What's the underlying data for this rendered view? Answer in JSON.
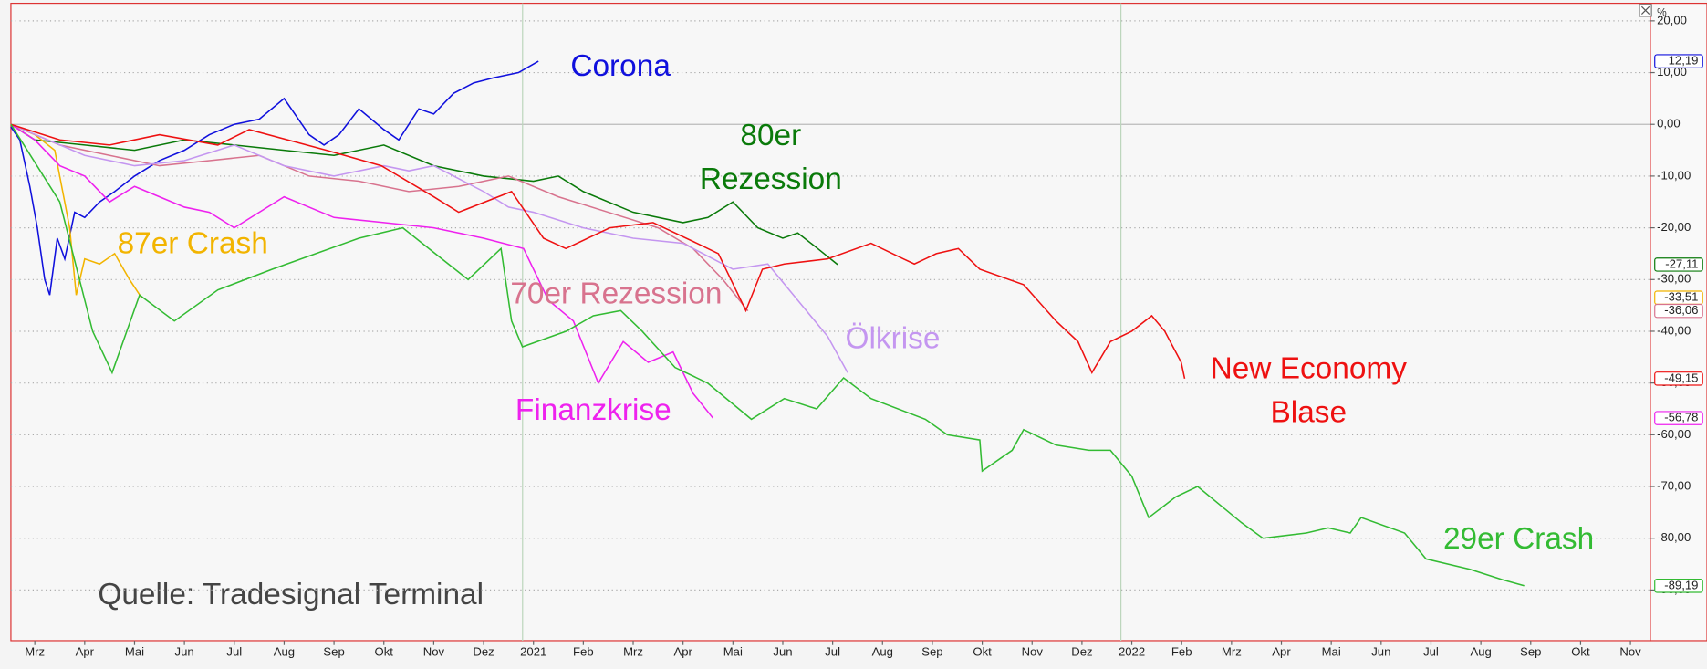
{
  "chart_data": {
    "type": "line",
    "unit": "%",
    "annotation": "Quelle: Tradesignal Terminal",
    "xlim": [
      -0.48,
      32.4
    ],
    "ylim": [
      -99.8,
      23.4
    ],
    "grid": true,
    "xticks": [
      {
        "value": 0,
        "label": "Mrz"
      },
      {
        "value": 1,
        "label": "Apr"
      },
      {
        "value": 2,
        "label": "Mai"
      },
      {
        "value": 3,
        "label": "Jun"
      },
      {
        "value": 4,
        "label": "Jul"
      },
      {
        "value": 5,
        "label": "Aug"
      },
      {
        "value": 6,
        "label": "Sep"
      },
      {
        "value": 7,
        "label": "Okt"
      },
      {
        "value": 8,
        "label": "Nov"
      },
      {
        "value": 9,
        "label": "Dez"
      },
      {
        "value": 10,
        "label": "2021"
      },
      {
        "value": 11,
        "label": "Feb"
      },
      {
        "value": 12,
        "label": "Mrz"
      },
      {
        "value": 13,
        "label": "Apr"
      },
      {
        "value": 14,
        "label": "Mai"
      },
      {
        "value": 15,
        "label": "Jun"
      },
      {
        "value": 16,
        "label": "Jul"
      },
      {
        "value": 17,
        "label": "Aug"
      },
      {
        "value": 18,
        "label": "Sep"
      },
      {
        "value": 19,
        "label": "Okt"
      },
      {
        "value": 20,
        "label": "Nov"
      },
      {
        "value": 21,
        "label": "Dez"
      },
      {
        "value": 22,
        "label": "2022"
      },
      {
        "value": 23,
        "label": "Feb"
      },
      {
        "value": 24,
        "label": "Mrz"
      },
      {
        "value": 25,
        "label": "Apr"
      },
      {
        "value": 26,
        "label": "Mai"
      },
      {
        "value": 27,
        "label": "Jun"
      },
      {
        "value": 28,
        "label": "Jul"
      },
      {
        "value": 29,
        "label": "Aug"
      },
      {
        "value": 30,
        "label": "Sep"
      },
      {
        "value": 31,
        "label": "Okt"
      },
      {
        "value": 32,
        "label": "Nov"
      }
    ],
    "yticks": [
      {
        "value": 20,
        "label": "20,00"
      },
      {
        "value": 10,
        "label": "10,00"
      },
      {
        "value": 0,
        "label": "0,00"
      },
      {
        "value": -10,
        "label": "-10,00"
      },
      {
        "value": -20,
        "label": "-20,00"
      },
      {
        "value": -30,
        "label": "-30,00"
      },
      {
        "value": -40,
        "label": "-40,00"
      },
      {
        "value": -50,
        "label": "-50,00"
      },
      {
        "value": -60,
        "label": "-60,00"
      },
      {
        "value": -70,
        "label": "-70,00"
      },
      {
        "value": -80,
        "label": "-80,00"
      },
      {
        "value": -90,
        "label": "-90,00"
      }
    ],
    "series": [
      {
        "name": [
          "Corona"
        ],
        "color": "#1010dd",
        "last_label": "12,19",
        "x": [
          -0.48,
          -0.3,
          -0.1,
          0.05,
          0.2,
          0.3,
          0.45,
          0.6,
          0.8,
          1.0,
          1.3,
          1.6,
          2.0,
          2.5,
          3.0,
          3.5,
          4.0,
          4.5,
          5.0,
          5.5,
          5.8,
          6.1,
          6.5,
          7.0,
          7.3,
          7.7,
          8.0,
          8.4,
          8.8,
          9.2,
          9.7,
          10.1
        ],
        "values": [
          -0.5,
          -3,
          -12,
          -20,
          -30,
          -33,
          -22,
          -26,
          -17,
          -18,
          -15,
          -13,
          -10,
          -7,
          -5,
          -2,
          0,
          1,
          5,
          -2,
          -4,
          -2,
          3,
          -1,
          -3,
          3,
          2,
          6,
          8,
          9,
          10,
          12.19
        ]
      },
      {
        "name": [
          "80er",
          "Rezession"
        ],
        "color": "#0a7a0a",
        "last_label": "-27,11",
        "x": [
          -0.48,
          0,
          1,
          2,
          3,
          4,
          5,
          6,
          7,
          8,
          9,
          10,
          10.5,
          11,
          12,
          13,
          13.5,
          14,
          14.5,
          15,
          15.3,
          15.7,
          16.1
        ],
        "values": [
          0,
          -3,
          -4,
          -5,
          -3,
          -4,
          -5,
          -6,
          -4,
          -8,
          -10,
          -11,
          -10,
          -13,
          -17,
          -19,
          -18,
          -15,
          -20,
          -22,
          -21,
          -24,
          -27.11
        ]
      },
      {
        "name": [
          "87er Crash"
        ],
        "color": "#f2b400",
        "last_label": "-33,51",
        "x": [
          -0.48,
          0,
          0.4,
          0.7,
          0.83,
          1.0,
          1.3,
          1.6,
          1.9,
          2.14
        ],
        "values": [
          0,
          -2,
          -5,
          -20,
          -33,
          -26,
          -27,
          -25,
          -30,
          -33.51
        ]
      },
      {
        "name": [
          "70er Rezession"
        ],
        "color": "#d8738e",
        "last_label": "-36,06",
        "x": [
          -0.48,
          0.5,
          1.5,
          2.5,
          3.5,
          4.5,
          5.5,
          6.5,
          7.5,
          8.5,
          9.5,
          10.5,
          11.5,
          12.5,
          13.2,
          13.8,
          14.3
        ],
        "values": [
          0,
          -4,
          -6,
          -8,
          -7,
          -6,
          -10,
          -11,
          -13,
          -12,
          -10,
          -14,
          -17,
          -20,
          -24,
          -30,
          -36.06
        ]
      },
      {
        "name": [
          "Ölkrise"
        ],
        "color": "#c496f0",
        "x": [
          -0.48,
          1,
          2,
          3,
          4,
          5,
          6,
          7,
          7.5,
          8,
          9,
          9.5,
          10,
          11,
          12,
          13,
          14,
          14.7,
          15.3,
          15.9,
          16.3
        ],
        "values": [
          0,
          -6,
          -8,
          -7,
          -4,
          -8,
          -10,
          -8,
          -9,
          -8,
          -13,
          -16,
          -17,
          -20,
          -22,
          -23,
          -28,
          -27,
          -34,
          -41,
          -48
        ]
      },
      {
        "name": [
          "Finanzkrise"
        ],
        "color": "#ee22ee",
        "last_label": "-56,78",
        "x": [
          -0.48,
          0,
          0.5,
          1,
          1.5,
          2,
          2.5,
          3,
          3.5,
          4,
          5,
          6,
          7,
          8,
          9,
          9.8,
          10.3,
          10.8,
          11.3,
          11.8,
          12.3,
          12.8,
          13.2,
          13.6
        ],
        "values": [
          0,
          -3,
          -8,
          -10,
          -15,
          -12,
          -14,
          -16,
          -17,
          -20,
          -14,
          -18,
          -19,
          -20,
          -22,
          -24,
          -34,
          -38,
          -50,
          -42,
          -46,
          -44,
          -52,
          -56.78
        ]
      },
      {
        "name": [
          "New Economy",
          "Blase"
        ],
        "color": "#ee1111",
        "last_label": "-49,15",
        "x": [
          -0.48,
          0.5,
          1.5,
          2.5,
          3.67,
          4.3,
          5.85,
          6.95,
          8.0,
          8.5,
          9.56,
          10.2,
          10.65,
          11.53,
          12.4,
          13.28,
          13.71,
          14.26,
          14.59,
          15.03,
          15.9,
          16.77,
          17.42,
          17.64,
          18.08,
          18.52,
          18.95,
          19.83,
          20.48,
          20.92,
          21.2,
          21.57,
          22.0,
          22.4,
          22.66,
          22.99,
          23.06
        ],
        "values": [
          0,
          -3,
          -4,
          -2,
          -4,
          -1,
          -5,
          -8,
          -14,
          -17,
          -13,
          -22,
          -24,
          -20,
          -19,
          -23,
          -25,
          -36,
          -28,
          -27,
          -26,
          -23,
          -26,
          -27,
          -25,
          -24,
          -28,
          -31,
          -38,
          -42,
          -48,
          -42,
          -40,
          -37,
          -40,
          -46,
          -49.15
        ]
      },
      {
        "name": [
          "29er Crash"
        ],
        "color": "#33bb33",
        "last_label": "-89,19",
        "x": [
          -0.48,
          0.5,
          1.16,
          1.55,
          2.1,
          2.8,
          3.67,
          4.76,
          6.5,
          7.38,
          8.03,
          8.69,
          9.35,
          9.56,
          9.78,
          10.66,
          11.2,
          11.75,
          12.18,
          12.84,
          13.49,
          14.37,
          15.03,
          15.68,
          16.22,
          16.77,
          17.86,
          18.3,
          18.95,
          19.0,
          19.6,
          19.83,
          20.48,
          21.14,
          21.57,
          22.0,
          22.34,
          22.88,
          23.32,
          24.2,
          24.63,
          25.5,
          25.94,
          26.38,
          26.6,
          27.47,
          27.9,
          28.78,
          29.43,
          29.87
        ],
        "values": [
          0,
          -15,
          -40,
          -48,
          -33,
          -38,
          -32,
          -28,
          -22,
          -20,
          -25,
          -30,
          -24,
          -38,
          -43,
          -40,
          -37,
          -36,
          -40,
          -47,
          -50,
          -57,
          -53,
          -55,
          -49,
          -53,
          -57,
          -60,
          -61,
          -67,
          -63,
          -59,
          -62,
          -63,
          -63,
          -68,
          -76,
          -72,
          -70,
          -77,
          -80,
          -79,
          -78,
          -79,
          -76,
          -79,
          -84,
          -86,
          -88,
          -89.19
        ]
      }
    ]
  }
}
